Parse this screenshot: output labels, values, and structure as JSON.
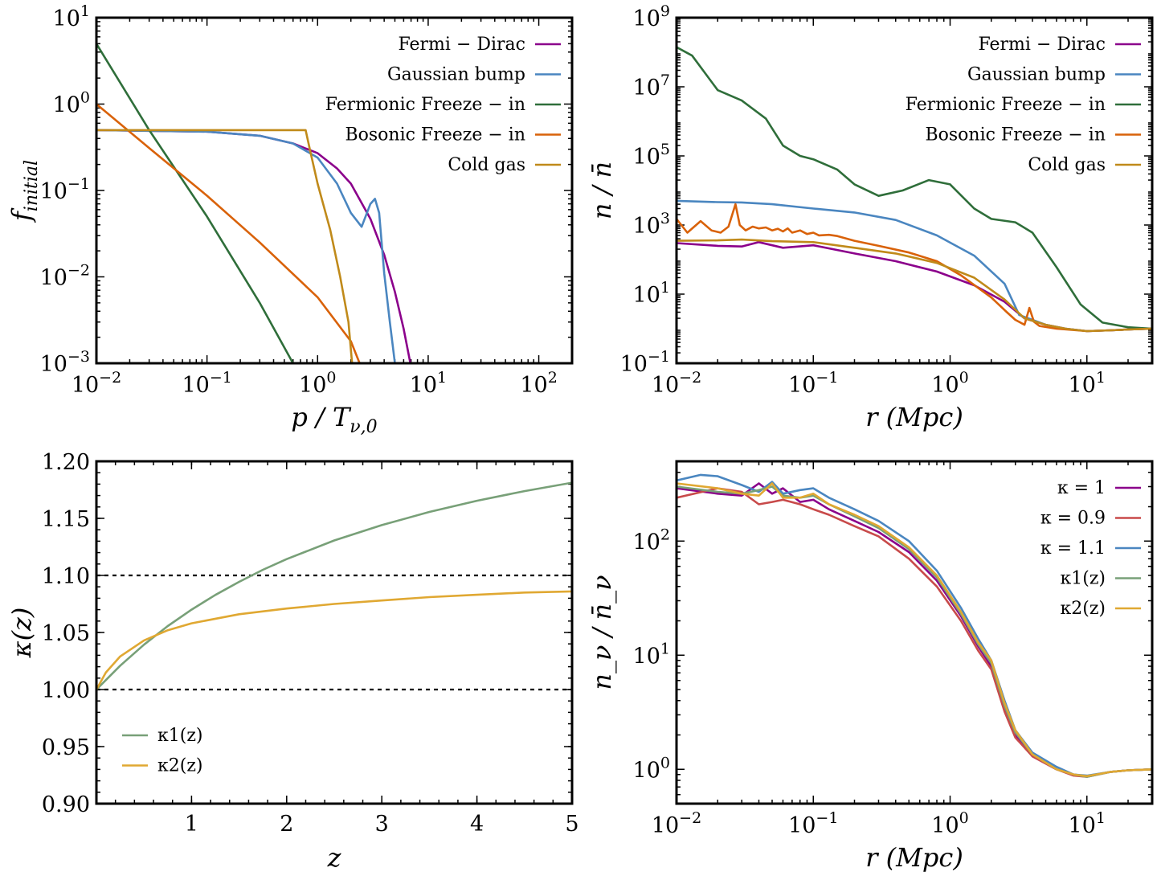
{
  "colors": {
    "purple": "#8b008b",
    "blue": "#4a86c0",
    "green": "#2f6e3a",
    "orange": "#d9620a",
    "gold": "#c08a1a",
    "red": "#c84a4a",
    "sage": "#78a078",
    "yellow": "#e0a832"
  },
  "chart_data": [
    {
      "id": "tl",
      "type": "line",
      "xscale": "log",
      "yscale": "log",
      "xlim": [
        0.01,
        200
      ],
      "ylim": [
        0.001,
        10
      ],
      "xlabel": "p / T_{ν,0}",
      "ylabel": "f_initial",
      "xticks": [
        {
          "v": 0.01,
          "b": "10",
          "e": "−2"
        },
        {
          "v": 0.1,
          "b": "10",
          "e": "−1"
        },
        {
          "v": 1,
          "b": "10",
          "e": "0"
        },
        {
          "v": 10,
          "b": "10",
          "e": "1"
        },
        {
          "v": 100,
          "b": "10",
          "e": "2"
        }
      ],
      "yticks": [
        {
          "v": 0.001,
          "b": "10",
          "e": "−3"
        },
        {
          "v": 0.01,
          "b": "10",
          "e": "−2"
        },
        {
          "v": 0.1,
          "b": "10",
          "e": "−1"
        },
        {
          "v": 1,
          "b": "10",
          "e": "0"
        },
        {
          "v": 10,
          "b": "10",
          "e": "1"
        }
      ],
      "legend": "top-right",
      "series": [
        {
          "name": "Fermi − Dirac",
          "color": "purple",
          "x": [
            0.01,
            0.1,
            0.3,
            0.6,
            1,
            1.5,
            2,
            3,
            4,
            5,
            6,
            7
          ],
          "y": [
            0.5,
            0.48,
            0.43,
            0.35,
            0.27,
            0.18,
            0.12,
            0.047,
            0.018,
            0.0067,
            0.0025,
            0.00091
          ]
        },
        {
          "name": "Gaussian bump",
          "color": "blue",
          "x": [
            0.01,
            0.1,
            0.3,
            0.6,
            1,
            1.5,
            2,
            2.5,
            3,
            3.3,
            3.6,
            4,
            4.5,
            5
          ],
          "y": [
            0.5,
            0.48,
            0.43,
            0.35,
            0.24,
            0.12,
            0.055,
            0.038,
            0.07,
            0.08,
            0.055,
            0.011,
            0.003,
            0.001
          ]
        },
        {
          "name": "Fermionic Freeze − in",
          "color": "green",
          "x": [
            0.01,
            0.03,
            0.1,
            0.3,
            0.6
          ],
          "y": [
            5,
            0.5,
            0.05,
            0.005,
            0.001
          ]
        },
        {
          "name": "Bosonic Freeze − in",
          "color": "orange",
          "x": [
            0.01,
            0.03,
            0.1,
            0.3,
            1,
            2,
            2.4
          ],
          "y": [
            1.0,
            0.31,
            0.087,
            0.025,
            0.0058,
            0.0018,
            0.001
          ]
        },
        {
          "name": "Cold gas",
          "color": "gold",
          "x": [
            0.01,
            0.1,
            0.5,
            0.78,
            0.85,
            1.0,
            1.3,
            1.6,
            1.9,
            2.05
          ],
          "y": [
            0.5,
            0.5,
            0.5,
            0.5,
            0.3,
            0.12,
            0.035,
            0.01,
            0.003,
            0.001
          ]
        }
      ]
    },
    {
      "id": "tr",
      "type": "line",
      "xscale": "log",
      "yscale": "log",
      "xlim": [
        0.01,
        30
      ],
      "ylim": [
        0.1,
        1000000000
      ],
      "xlabel": "r (Mpc)",
      "ylabel": "n / n̄",
      "xticks": [
        {
          "v": 0.01,
          "b": "10",
          "e": "−2"
        },
        {
          "v": 0.1,
          "b": "10",
          "e": "−1"
        },
        {
          "v": 1,
          "b": "10",
          "e": "0"
        },
        {
          "v": 10,
          "b": "10",
          "e": "1"
        }
      ],
      "yticks": [
        {
          "v": 0.1,
          "b": "10",
          "e": "−1"
        },
        {
          "v": 10,
          "b": "10",
          "e": "1"
        },
        {
          "v": 1000,
          "b": "10",
          "e": "3"
        },
        {
          "v": 100000,
          "b": "10",
          "e": "5"
        },
        {
          "v": 10000000,
          "b": "10",
          "e": "7"
        },
        {
          "v": 1000000000,
          "b": "10",
          "e": "9"
        }
      ],
      "legend": "top-right",
      "series": [
        {
          "name": "Fermi − Dirac",
          "color": "purple",
          "x": [
            0.01,
            0.02,
            0.03,
            0.04,
            0.06,
            0.1,
            0.2,
            0.4,
            0.8,
            1.5,
            2.5,
            3.5,
            5,
            7,
            10,
            15,
            20,
            30
          ],
          "y": [
            300,
            250,
            240,
            320,
            220,
            260,
            150,
            90,
            45,
            18,
            6,
            2,
            1.3,
            1.0,
            0.85,
            0.9,
            0.95,
            1.0
          ]
        },
        {
          "name": "Gaussian bump",
          "color": "blue",
          "x": [
            0.01,
            0.02,
            0.03,
            0.05,
            0.1,
            0.2,
            0.4,
            0.8,
            1.5,
            2.5,
            3.2,
            5,
            7,
            10,
            15,
            20,
            30
          ],
          "y": [
            5000,
            4600,
            4500,
            4000,
            3000,
            2300,
            1400,
            500,
            130,
            20,
            2.5,
            1.3,
            1.0,
            0.85,
            0.9,
            0.95,
            1.0
          ]
        },
        {
          "name": "Fermionic Freeze − in",
          "color": "green",
          "x": [
            0.01,
            0.013,
            0.02,
            0.03,
            0.045,
            0.06,
            0.08,
            0.1,
            0.15,
            0.2,
            0.3,
            0.45,
            0.7,
            1.0,
            1.5,
            2.0,
            3.0,
            4.0,
            6.0,
            9.0,
            13,
            20,
            30
          ],
          "y": [
            140000000,
            80000000,
            8000000,
            4000000,
            1200000,
            200000,
            100000,
            80000,
            40000,
            15000,
            7000,
            10000,
            20000,
            15000,
            3000,
            1500,
            1200,
            600,
            60,
            5,
            1.5,
            1.1,
            1.0
          ]
        },
        {
          "name": "Bosonic Freeze − in",
          "color": "orange",
          "x": [
            0.01,
            0.012,
            0.015,
            0.018,
            0.021,
            0.024,
            0.027,
            0.029,
            0.032,
            0.036,
            0.04,
            0.045,
            0.05,
            0.055,
            0.06,
            0.065,
            0.07,
            0.08,
            0.09,
            0.1,
            0.11,
            0.13,
            0.15,
            0.2,
            0.3,
            0.5,
            0.8,
            1.2,
            2.0,
            2.6,
            3.0,
            3.5,
            3.8,
            4.1,
            4.5,
            6,
            10,
            15,
            20,
            30
          ],
          "y": [
            1500,
            600,
            1300,
            700,
            600,
            900,
            4000,
            1000,
            700,
            900,
            800,
            850,
            700,
            780,
            650,
            800,
            600,
            700,
            550,
            600,
            500,
            520,
            480,
            350,
            250,
            160,
            90,
            35,
            8,
            3,
            1.8,
            1.3,
            4.0,
            1.6,
            1.2,
            1.0,
            0.85,
            0.9,
            0.95,
            1.0
          ]
        },
        {
          "name": "Cold gas",
          "color": "gold",
          "x": [
            0.01,
            0.02,
            0.03,
            0.05,
            0.1,
            0.2,
            0.4,
            0.8,
            1.5,
            2.5,
            3.5,
            5,
            7,
            10,
            15,
            20,
            30
          ],
          "y": [
            350,
            360,
            380,
            340,
            320,
            220,
            150,
            80,
            30,
            7,
            2,
            1.3,
            1.0,
            0.85,
            0.9,
            0.95,
            1.0
          ]
        }
      ]
    },
    {
      "id": "bl",
      "type": "line",
      "xscale": "linear",
      "yscale": "linear",
      "xlim": [
        0,
        5
      ],
      "ylim": [
        0.9,
        1.2
      ],
      "xlabel": "z",
      "ylabel": "κ(z)",
      "xticks": [
        {
          "v": 1,
          "t": "1"
        },
        {
          "v": 2,
          "t": "2"
        },
        {
          "v": 3,
          "t": "3"
        },
        {
          "v": 4,
          "t": "4"
        },
        {
          "v": 5,
          "t": "5"
        }
      ],
      "yticks": [
        {
          "v": 0.9,
          "t": "0.90"
        },
        {
          "v": 0.95,
          "t": "0.95"
        },
        {
          "v": 1.0,
          "t": "1.00"
        },
        {
          "v": 1.05,
          "t": "1.05"
        },
        {
          "v": 1.1,
          "t": "1.10"
        },
        {
          "v": 1.15,
          "t": "1.15"
        },
        {
          "v": 1.2,
          "t": "1.20"
        }
      ],
      "hlines": [
        1.0,
        1.1
      ],
      "legend": "bottom-left",
      "series": [
        {
          "name": "κ1(z)",
          "color": "sage",
          "x": [
            0,
            0.25,
            0.5,
            0.75,
            1.0,
            1.25,
            1.5,
            1.75,
            2.0,
            2.5,
            3.0,
            3.5,
            4.0,
            4.5,
            5.0
          ],
          "y": [
            1.0,
            1.0209,
            1.0393,
            1.0556,
            1.07,
            1.0829,
            1.0944,
            1.1049,
            1.1143,
            1.1306,
            1.1441,
            1.1556,
            1.1654,
            1.1739,
            1.1813
          ]
        },
        {
          "name": "κ2(z)",
          "color": "yellow",
          "x": [
            0,
            0.1,
            0.25,
            0.5,
            0.75,
            1.0,
            1.5,
            2.0,
            2.5,
            3.0,
            3.5,
            4.0,
            4.5,
            5.0
          ],
          "y": [
            1.0,
            1.015,
            1.029,
            1.043,
            1.052,
            1.058,
            1.066,
            1.071,
            1.075,
            1.078,
            1.081,
            1.083,
            1.085,
            1.086
          ]
        }
      ]
    },
    {
      "id": "br",
      "type": "line",
      "xscale": "log",
      "yscale": "log",
      "xlim": [
        0.01,
        30
      ],
      "ylim": [
        0.5,
        500
      ],
      "xlabel": "r (Mpc)",
      "ylabel": "n_ν / n̄_ν",
      "xticks": [
        {
          "v": 0.01,
          "b": "10",
          "e": "−2"
        },
        {
          "v": 0.1,
          "b": "10",
          "e": "−1"
        },
        {
          "v": 1,
          "b": "10",
          "e": "0"
        },
        {
          "v": 10,
          "b": "10",
          "e": "1"
        }
      ],
      "yticks": [
        {
          "v": 1,
          "b": "10",
          "e": "0"
        },
        {
          "v": 10,
          "b": "10",
          "e": "1"
        },
        {
          "v": 100,
          "b": "10",
          "e": "2"
        }
      ],
      "legend": "top-right",
      "series": [
        {
          "name": "κ = 1",
          "color": "purple",
          "x": [
            0.01,
            0.02,
            0.03,
            0.04,
            0.05,
            0.06,
            0.08,
            0.1,
            0.13,
            0.2,
            0.3,
            0.5,
            0.8,
            1.2,
            1.6,
            2.0,
            2.5,
            3.0,
            4.0,
            6.0,
            8.0,
            10,
            15,
            20,
            30
          ],
          "y": [
            290,
            260,
            250,
            320,
            260,
            290,
            220,
            230,
            190,
            150,
            120,
            80,
            45,
            22,
            12,
            8,
            3.5,
            2.0,
            1.3,
            1.0,
            0.9,
            0.87,
            0.95,
            0.98,
            1.0
          ]
        },
        {
          "name": "κ = 0.9",
          "color": "red",
          "x": [
            0.01,
            0.02,
            0.03,
            0.04,
            0.05,
            0.06,
            0.08,
            0.1,
            0.13,
            0.2,
            0.3,
            0.5,
            0.8,
            1.2,
            1.6,
            2.0,
            2.5,
            3.0,
            4.0,
            6.0,
            8.0,
            10,
            15,
            20,
            30
          ],
          "y": [
            240,
            290,
            270,
            210,
            220,
            230,
            210,
            190,
            170,
            135,
            110,
            70,
            40,
            20,
            11,
            7.5,
            3.2,
            1.9,
            1.3,
            1.0,
            0.88,
            0.86,
            0.95,
            0.98,
            1.0
          ]
        },
        {
          "name": "κ = 1.1",
          "color": "blue",
          "x": [
            0.01,
            0.015,
            0.02,
            0.03,
            0.04,
            0.05,
            0.06,
            0.08,
            0.1,
            0.13,
            0.2,
            0.3,
            0.5,
            0.8,
            1.2,
            1.6,
            2.0,
            2.5,
            3.0,
            4.0,
            6.0,
            8.0,
            10,
            15,
            20,
            30
          ],
          "y": [
            340,
            380,
            370,
            310,
            270,
            330,
            260,
            280,
            290,
            240,
            190,
            150,
            100,
            55,
            26,
            14,
            9,
            4.0,
            2.2,
            1.4,
            1.05,
            0.9,
            0.88,
            0.95,
            0.98,
            1.0
          ]
        },
        {
          "name": "κ1(z)",
          "color": "sage",
          "x": [
            0.01,
            0.02,
            0.03,
            0.04,
            0.05,
            0.06,
            0.08,
            0.1,
            0.13,
            0.2,
            0.3,
            0.5,
            0.8,
            1.2,
            1.6,
            2.0,
            2.5,
            3.0,
            4.0,
            6.0,
            8.0,
            10,
            15,
            20,
            30
          ],
          "y": [
            300,
            270,
            260,
            280,
            300,
            250,
            240,
            250,
            210,
            165,
            130,
            85,
            48,
            23,
            12.5,
            8.5,
            3.6,
            2.1,
            1.35,
            1.0,
            0.9,
            0.86,
            0.95,
            0.98,
            1.0
          ]
        },
        {
          "name": "κ2(z)",
          "color": "yellow",
          "x": [
            0.01,
            0.02,
            0.03,
            0.04,
            0.05,
            0.06,
            0.08,
            0.1,
            0.13,
            0.2,
            0.3,
            0.5,
            0.8,
            1.2,
            1.6,
            2.0,
            2.5,
            3.0,
            4.0,
            6.0,
            8.0,
            10,
            15,
            20,
            30
          ],
          "y": [
            320,
            290,
            260,
            250,
            320,
            240,
            240,
            260,
            210,
            170,
            135,
            88,
            50,
            24,
            13,
            9,
            3.8,
            2.2,
            1.35,
            1.0,
            0.9,
            0.87,
            0.95,
            0.98,
            1.0
          ]
        }
      ]
    }
  ]
}
